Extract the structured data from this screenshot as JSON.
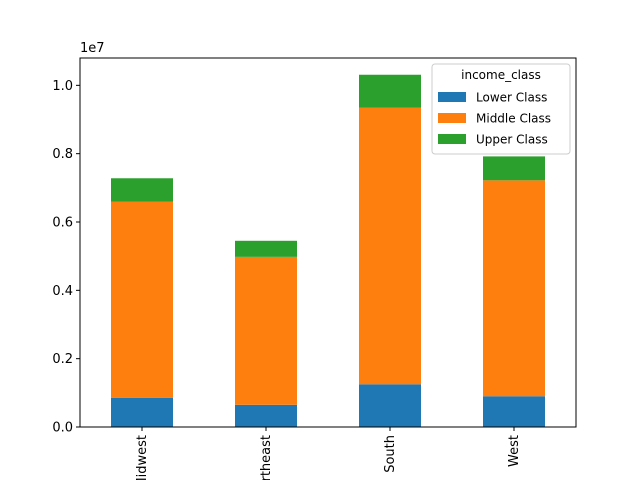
{
  "chart_data": {
    "type": "bar",
    "stacked": true,
    "categories": [
      "Midwest",
      "Northeast",
      "South",
      "West"
    ],
    "series": [
      {
        "name": "Lower Class",
        "color": "#1f77b4",
        "values": [
          850000,
          650000,
          1250000,
          900000
        ]
      },
      {
        "name": "Middle Class",
        "color": "#ff7f0e",
        "values": [
          5750000,
          4330000,
          8100000,
          6320000
        ]
      },
      {
        "name": "Upper Class",
        "color": "#2ca02c",
        "values": [
          680000,
          470000,
          960000,
          700000
        ]
      }
    ],
    "title": "",
    "xlabel": "",
    "ylabel": "",
    "ylim": [
      0,
      10800000
    ],
    "yticks": [
      0,
      2000000,
      4000000,
      6000000,
      8000000,
      10000000
    ],
    "ytick_labels": [
      "0.0",
      "0.2",
      "0.4",
      "0.6",
      "0.8",
      "1.0"
    ],
    "y_offset_label": "1e7",
    "legend": {
      "title": "income_class",
      "position": "top-right"
    },
    "grid": false
  }
}
